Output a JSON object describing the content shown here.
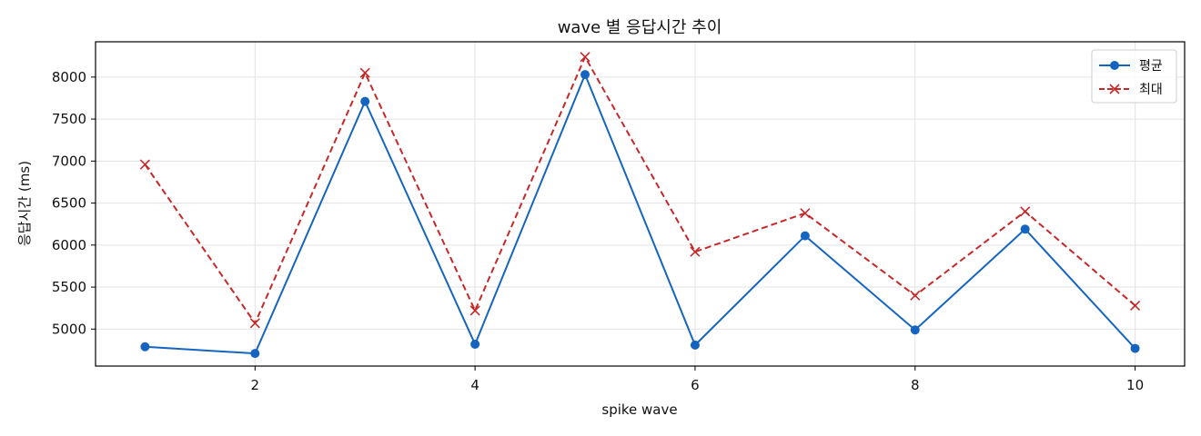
{
  "chart_data": {
    "type": "line",
    "title": "wave 별 응답시간 추이",
    "xlabel": "spike wave",
    "ylabel": "응답시간 (ms)",
    "x": [
      1,
      2,
      3,
      4,
      5,
      6,
      7,
      8,
      9,
      10
    ],
    "xticks": [
      2,
      4,
      6,
      8,
      10
    ],
    "yticks": [
      5000,
      5500,
      6000,
      6500,
      7000,
      7500,
      8000
    ],
    "xlim": [
      0.55,
      10.45
    ],
    "ylim": [
      4560,
      8420
    ],
    "grid": true,
    "legend_position": "top-right",
    "series": [
      {
        "name": "평균",
        "color": "#1565c0",
        "marker": "circle",
        "line_style": "solid",
        "values": [
          4790,
          4710,
          7710,
          4820,
          8030,
          4810,
          6110,
          4990,
          6190,
          4770
        ]
      },
      {
        "name": "최대",
        "color": "#c62828",
        "marker": "x",
        "line_style": "dashed",
        "values": [
          6960,
          5070,
          8050,
          5220,
          8240,
          5920,
          6380,
          5400,
          6400,
          5280
        ]
      }
    ]
  }
}
